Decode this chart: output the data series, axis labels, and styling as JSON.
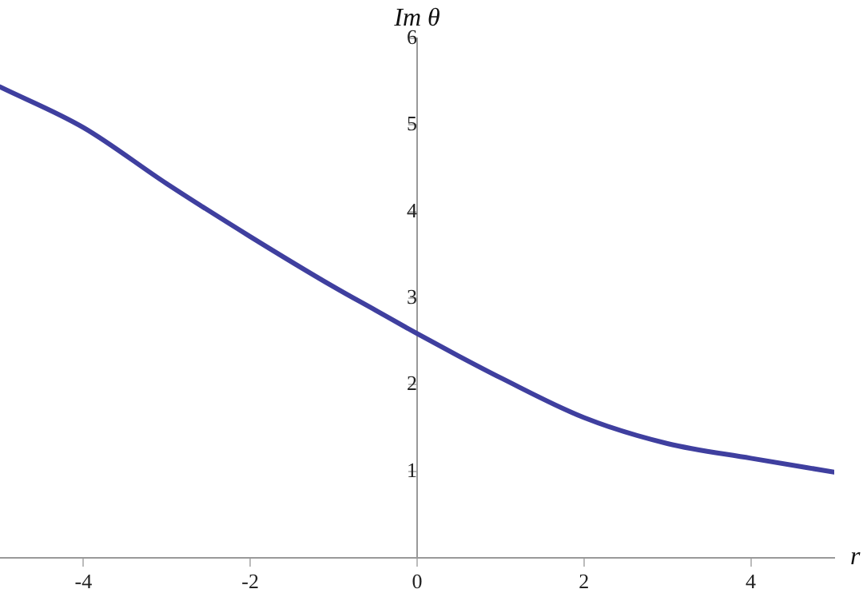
{
  "chart_data": {
    "type": "line",
    "xlabel": "r",
    "ylabel": "Im θ",
    "xlim": [
      -5,
      5
    ],
    "ylim": [
      0,
      6
    ],
    "xticks": [
      -4,
      -2,
      0,
      2,
      4
    ],
    "yticks": [
      1,
      2,
      3,
      4,
      5,
      6
    ],
    "grid": false,
    "legend": false,
    "marker": "none",
    "line_style": "solid",
    "series": [
      {
        "color": "#3f3f9f",
        "x": [
          -5,
          -4,
          -3,
          -2,
          -1,
          -0.5,
          0,
          0.5,
          1,
          2,
          3,
          4,
          5
        ],
        "values": [
          5.44,
          4.97,
          4.32,
          3.71,
          3.13,
          2.86,
          2.59,
          2.33,
          2.08,
          1.62,
          1.32,
          1.15,
          0.99
        ]
      }
    ]
  }
}
